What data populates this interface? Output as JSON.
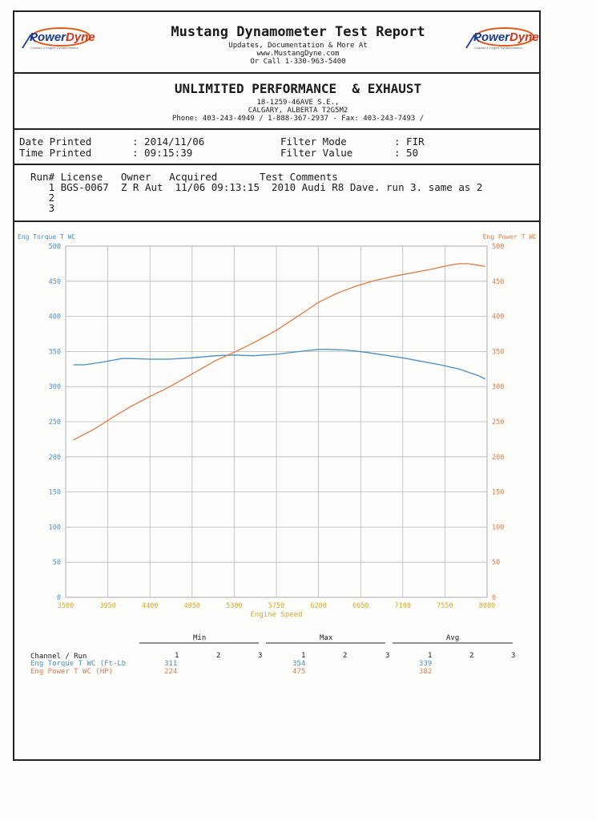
{
  "header": {
    "title": "Mustang Dynamometer Test Report",
    "line1": "Updates, Documentation & More At",
    "line2": "www.MustangDyne.com",
    "line3": "Or Call 1-330-963-5400",
    "logo_left": {
      "text_a": "Power",
      "text_b": "Dyne",
      "sub": "Chassis & Engine Dynamometers"
    },
    "logo_right": {
      "text_a": "Power",
      "text_b": "Dyne",
      "sub": "Chassis & Engine Dynamometers"
    }
  },
  "shop": {
    "name": "UNLIMITED PERFORMANCE  & EXHAUST",
    "address1": "18-1259-46AVE  S.E.,",
    "address2": "CALGARY, ALBERTA  T2G5M2",
    "phone": "Phone: 403-243-4949 / 1-888-367-2937 - Fax: 403-243-7493 /"
  },
  "info": {
    "date_label": "Date Printed",
    "date_value": ": 2014/11/06",
    "time_label": "Time Printed",
    "time_value": ": 09:15:39",
    "filter_mode_label": "Filter Mode",
    "filter_mode_value": ": FIR",
    "filter_value_label": "Filter Value",
    "filter_value_value": ": 50"
  },
  "runs": {
    "header": "Run# License   Owner   Acquired       Test Comments",
    "rows": [
      "   1 BGS-0067  Z R Aut  11/06 09:13:15  2010 Audi R8 Dave. run 3. same as 2",
      "   2",
      "   3"
    ]
  },
  "colors": {
    "torque": "#4a8fc0",
    "power": "#e07a45",
    "axis_x": "#d9a72a",
    "grid": "#b8b8b8"
  },
  "chart_data": {
    "type": "line",
    "xlabel": "Engine Speed",
    "ylabel_left": "Eng Torque T WC",
    "ylabel_right": "Eng Power T WC",
    "xlim": [
      3500,
      8000
    ],
    "ylim": [
      0,
      500
    ],
    "x_ticks": [
      "3500",
      "3950",
      "4400",
      "4850",
      "5300",
      "5750",
      "6200",
      "6650",
      "7100",
      "7550",
      "8000"
    ],
    "y_ticks": [
      "0",
      "50",
      "100",
      "150",
      "200",
      "250",
      "300",
      "350",
      "400",
      "450",
      "500"
    ],
    "series": [
      {
        "name": "Eng Torque T WC",
        "axis": "left",
        "x": [
          3580,
          3700,
          3900,
          4100,
          4200,
          4400,
          4600,
          4850,
          5100,
          5300,
          5500,
          5750,
          6000,
          6200,
          6300,
          6500,
          6700,
          6900,
          7100,
          7300,
          7500,
          7700,
          7900,
          7980
        ],
        "y": [
          331,
          331,
          335,
          340,
          340,
          339,
          339,
          341,
          344,
          345,
          344,
          346,
          350,
          353,
          353,
          352,
          349,
          345,
          341,
          336,
          331,
          325,
          316,
          311
        ]
      },
      {
        "name": "Eng Power T WC",
        "axis": "right",
        "x": [
          3580,
          3800,
          4000,
          4200,
          4400,
          4600,
          4850,
          5100,
          5300,
          5500,
          5750,
          6000,
          6200,
          6400,
          6600,
          6800,
          7000,
          7200,
          7400,
          7600,
          7700,
          7800,
          7900,
          7980
        ],
        "y": [
          224,
          239,
          256,
          272,
          286,
          299,
          318,
          337,
          349,
          362,
          380,
          402,
          420,
          433,
          443,
          451,
          457,
          462,
          467,
          473,
          475,
          475,
          473,
          471
        ]
      }
    ]
  },
  "stats": {
    "groups": [
      "Min",
      "Max",
      "Avg"
    ],
    "channel_header": "Channel / Run",
    "run_cols": [
      "1",
      "2",
      "3"
    ],
    "rows": [
      {
        "label": "Eng Torque T WC (Ft-Lb",
        "min": "311",
        "max": "354",
        "avg": "339"
      },
      {
        "label": "Eng Power T WC (HP)",
        "min": "224",
        "max": "475",
        "avg": "382"
      }
    ]
  }
}
